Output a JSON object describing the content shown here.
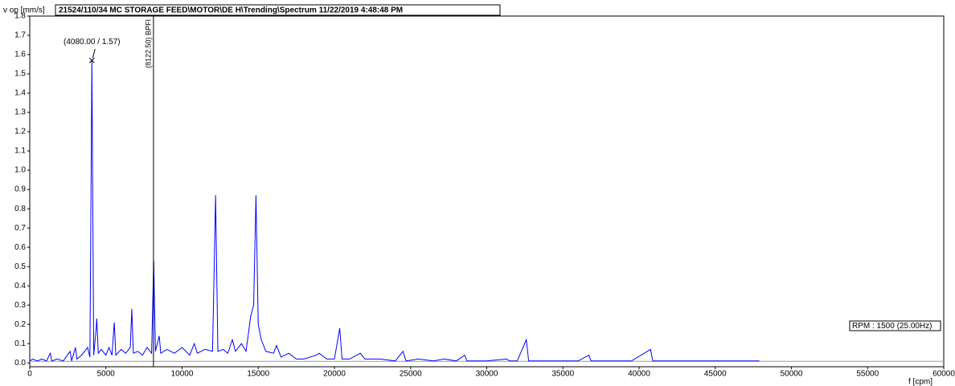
{
  "chart_data": {
    "type": "line",
    "title": "21524/110/34 MC STORAGE FEED\\MOTOR\\DE H\\Trending\\Spectrum 11/22/2019 4:48:48 PM",
    "y_label": "v op [mm/s]",
    "x_label": "f [cpm]",
    "rpm_label": "RPM : 1500 (25.00Hz)",
    "color": "#0000ff",
    "x": [
      0,
      200,
      500,
      800,
      1100,
      1350,
      1450,
      1800,
      2200,
      2650,
      2750,
      3000,
      3100,
      3400,
      3800,
      3950,
      4080,
      4200,
      4350,
      4400,
      4500,
      4700,
      5000,
      5200,
      5400,
      5550,
      5650,
      6000,
      6300,
      6600,
      6700,
      6800,
      7100,
      7400,
      7700,
      8000,
      8140,
      8250,
      8500,
      8600,
      9000,
      9500,
      10000,
      10500,
      10800,
      11000,
      11500,
      12000,
      12200,
      12350,
      12700,
      13000,
      13300,
      13500,
      13900,
      14200,
      14500,
      14700,
      14850,
      15000,
      15200,
      15500,
      16000,
      16200,
      16500,
      17000,
      17500,
      18000,
      18800,
      19000,
      19500,
      20000,
      20350,
      20500,
      21000,
      21700,
      22000,
      23000,
      24000,
      24500,
      24700,
      25500,
      26500,
      27200,
      28000,
      28550,
      28700,
      30000,
      31300,
      31500,
      32000,
      32600,
      32750,
      34000,
      35000,
      36000,
      36700,
      36850,
      38000,
      39500,
      40750,
      40900,
      42000,
      44000,
      44900,
      46000,
      47900
    ],
    "values": [
      0.01,
      0.02,
      0.01,
      0.02,
      0.01,
      0.05,
      0.01,
      0.02,
      0.01,
      0.06,
      0.01,
      0.08,
      0.02,
      0.04,
      0.08,
      0.03,
      1.57,
      0.04,
      0.17,
      0.23,
      0.05,
      0.07,
      0.04,
      0.08,
      0.04,
      0.21,
      0.04,
      0.07,
      0.05,
      0.08,
      0.28,
      0.05,
      0.06,
      0.04,
      0.08,
      0.05,
      0.53,
      0.06,
      0.14,
      0.05,
      0.07,
      0.05,
      0.08,
      0.04,
      0.1,
      0.05,
      0.07,
      0.06,
      0.87,
      0.06,
      0.07,
      0.05,
      0.12,
      0.06,
      0.1,
      0.06,
      0.24,
      0.3,
      0.87,
      0.2,
      0.12,
      0.06,
      0.05,
      0.09,
      0.03,
      0.05,
      0.02,
      0.02,
      0.04,
      0.05,
      0.02,
      0.02,
      0.18,
      0.02,
      0.02,
      0.05,
      0.02,
      0.02,
      0.01,
      0.06,
      0.01,
      0.02,
      0.01,
      0.02,
      0.01,
      0.04,
      0.01,
      0.01,
      0.02,
      0.01,
      0.01,
      0.12,
      0.01,
      0.01,
      0.01,
      0.01,
      0.04,
      0.01,
      0.01,
      0.01,
      0.07,
      0.01,
      0.01,
      0.01,
      0.01,
      0.01,
      0.01
    ],
    "xlim": [
      0,
      60000
    ],
    "xticks": [
      0,
      5000,
      10000,
      15000,
      20000,
      25000,
      30000,
      35000,
      40000,
      45000,
      50000,
      55000,
      60000
    ],
    "ylim": [
      -0.02,
      1.8
    ],
    "yticks": [
      {
        "value": 0,
        "label": "0.0"
      },
      0.1,
      0.2,
      0.3,
      0.4,
      0.5,
      0.6,
      0.7,
      0.8,
      0.9,
      {
        "value": 1,
        "label": "1.0"
      },
      1.1,
      1.2,
      1.3,
      1.4,
      1.5,
      1.6,
      1.7,
      1.8
    ],
    "markers": [
      {
        "x": 8122.5,
        "label": "(8122.50) BPFI"
      }
    ],
    "annotations": [
      {
        "x": 4080,
        "y": 1.57,
        "label": "(4080.00 /  1.57)"
      }
    ]
  }
}
